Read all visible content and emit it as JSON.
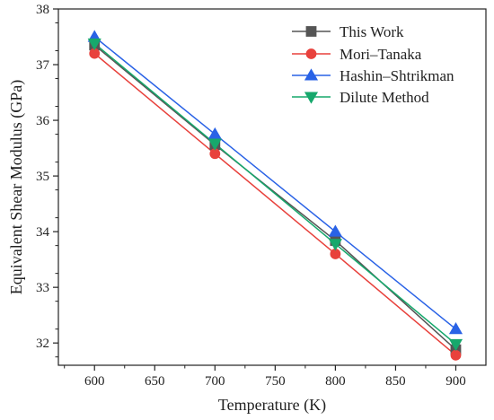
{
  "chart_data": {
    "type": "line",
    "title": "",
    "xlabel": "Temperature (K)",
    "ylabel": "Equivalent Shear Modulus (GPa)",
    "x": [
      600,
      700,
      800,
      900
    ],
    "xlim": [
      570,
      925
    ],
    "ylim": [
      31.6,
      38
    ],
    "xticks": [
      "600",
      "650",
      "700",
      "750",
      "800",
      "850",
      "900"
    ],
    "yticks": [
      "32",
      "33",
      "34",
      "35",
      "36",
      "37",
      "38"
    ],
    "legend_position": "top-right",
    "grid": false,
    "series": [
      {
        "name": "This Work",
        "values": [
          37.35,
          35.56,
          33.84,
          31.88
        ],
        "color": "#555555",
        "marker": "square"
      },
      {
        "name": "Mori–Tanaka",
        "values": [
          37.2,
          35.4,
          33.6,
          31.78
        ],
        "color": "#e8413c",
        "marker": "circle"
      },
      {
        "name": "Hashin–Shtrikman",
        "values": [
          37.5,
          35.75,
          34.0,
          32.25
        ],
        "color": "#2962e6",
        "marker": "triangle-up"
      },
      {
        "name": "Dilute Method",
        "values": [
          37.38,
          35.58,
          33.78,
          31.98
        ],
        "color": "#16a86c",
        "marker": "triangle-down"
      }
    ]
  }
}
